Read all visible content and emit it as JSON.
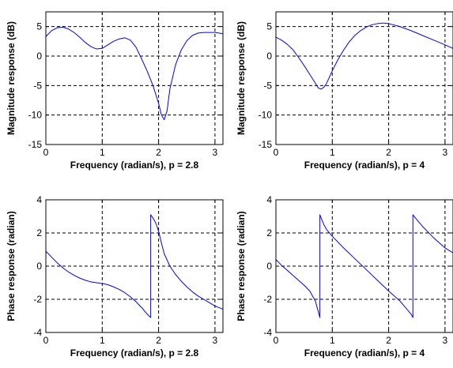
{
  "chart_data": [
    {
      "type": "line",
      "xlabel": "Frequency (radian/s), p = 2.8",
      "ylabel": "Magnitude response (dB)",
      "xlim": [
        0,
        3.1416
      ],
      "ylim": [
        -15,
        7.5
      ],
      "xticks": [
        0,
        1,
        2,
        3
      ],
      "yticks": [
        -15,
        -10,
        -5,
        0,
        5
      ],
      "grid": true,
      "series": [
        {
          "color": "#0000ff",
          "x": [
            0,
            0.1,
            0.2,
            0.3,
            0.4,
            0.5,
            0.6,
            0.7,
            0.8,
            0.9,
            1.0,
            1.1,
            1.2,
            1.3,
            1.4,
            1.5,
            1.6,
            1.7,
            1.8,
            1.9,
            2.0,
            2.05,
            2.1,
            2.15,
            2.2,
            2.3,
            2.4,
            2.5,
            2.6,
            2.7,
            2.8,
            2.9,
            3.0,
            3.1416
          ],
          "y": [
            3.3,
            4.3,
            4.8,
            4.9,
            4.6,
            4.0,
            3.2,
            2.3,
            1.6,
            1.2,
            1.3,
            1.9,
            2.5,
            2.9,
            3.1,
            2.7,
            1.5,
            -0.5,
            -2.6,
            -5.0,
            -8.0,
            -10.0,
            -10.8,
            -9.3,
            -5.6,
            -1.5,
            1.0,
            2.6,
            3.5,
            3.9,
            4.0,
            4.0,
            4.0,
            3.8
          ]
        }
      ]
    },
    {
      "type": "line",
      "xlabel": "Frequency (radian/s), p = 4",
      "ylabel": "Magnitude response (dB)",
      "xlim": [
        0,
        3.1416
      ],
      "ylim": [
        -15,
        7.5
      ],
      "xticks": [
        0,
        1,
        2,
        3
      ],
      "yticks": [
        -15,
        -10,
        -5,
        0,
        5
      ],
      "grid": true,
      "series": [
        {
          "color": "#0000ff",
          "x": [
            0,
            0.1,
            0.2,
            0.3,
            0.4,
            0.5,
            0.6,
            0.7,
            0.75,
            0.8,
            0.85,
            0.9,
            1.0,
            1.1,
            1.2,
            1.3,
            1.4,
            1.5,
            1.6,
            1.7,
            1.8,
            1.9,
            2.0,
            2.2,
            2.4,
            2.6,
            2.8,
            3.0,
            3.1416
          ],
          "y": [
            3.2,
            2.7,
            2.0,
            1.1,
            -0.2,
            -1.6,
            -3.1,
            -4.6,
            -5.4,
            -5.6,
            -5.3,
            -4.6,
            -2.5,
            -0.6,
            1.0,
            2.4,
            3.5,
            4.3,
            4.9,
            5.3,
            5.5,
            5.6,
            5.5,
            5.0,
            4.3,
            3.5,
            2.7,
            1.9,
            1.3
          ]
        }
      ]
    },
    {
      "type": "line",
      "xlabel": "Frequency (radian/s), p = 2.8",
      "ylabel": "Phase response (radian)",
      "xlim": [
        0,
        3.1416
      ],
      "ylim": [
        -4,
        4
      ],
      "xticks": [
        0,
        1,
        2,
        3
      ],
      "yticks": [
        -4,
        -2,
        0,
        2,
        4
      ],
      "grid": true,
      "series": [
        {
          "color": "#0000ff",
          "x": [
            0,
            0.1,
            0.2,
            0.3,
            0.4,
            0.5,
            0.6,
            0.7,
            0.8,
            0.9,
            1.0,
            1.1,
            1.2,
            1.3,
            1.4,
            1.5,
            1.6,
            1.7,
            1.8,
            1.86,
            1.86,
            1.9,
            1.95,
            2.0,
            2.05,
            2.1,
            2.2,
            2.3,
            2.4,
            2.5,
            2.6,
            2.7,
            2.8,
            2.9,
            3.0,
            3.1416
          ],
          "y": [
            0.9,
            0.55,
            0.2,
            -0.1,
            -0.35,
            -0.55,
            -0.72,
            -0.85,
            -0.95,
            -1.0,
            -1.05,
            -1.12,
            -1.25,
            -1.4,
            -1.6,
            -1.85,
            -2.15,
            -2.5,
            -2.9,
            -3.1,
            3.1,
            2.9,
            2.6,
            2.1,
            1.4,
            0.75,
            0.0,
            -0.5,
            -0.9,
            -1.25,
            -1.55,
            -1.8,
            -2.0,
            -2.2,
            -2.4,
            -2.6
          ]
        }
      ]
    },
    {
      "type": "line",
      "xlabel": "Frequency (radian/s), p = 4",
      "ylabel": "Phase response (radian)",
      "xlim": [
        0,
        3.1416
      ],
      "ylim": [
        -4,
        4
      ],
      "xticks": [
        0,
        1,
        2,
        3
      ],
      "yticks": [
        -4,
        -2,
        0,
        2,
        4
      ],
      "grid": true,
      "series": [
        {
          "color": "#0000ff",
          "x": [
            0,
            0.1,
            0.2,
            0.3,
            0.4,
            0.5,
            0.6,
            0.7,
            0.78,
            0.78,
            0.85,
            0.9,
            1.0,
            1.2,
            1.4,
            1.6,
            1.8,
            2.0,
            2.2,
            2.4,
            2.43,
            2.43,
            2.5,
            2.6,
            2.7,
            2.8,
            2.9,
            3.0,
            3.1416
          ],
          "y": [
            0.4,
            0.05,
            -0.25,
            -0.55,
            -0.85,
            -1.15,
            -1.5,
            -2.1,
            -3.1,
            3.1,
            2.5,
            2.2,
            1.8,
            1.1,
            0.45,
            -0.2,
            -0.85,
            -1.5,
            -2.1,
            -2.9,
            -3.1,
            3.1,
            2.8,
            2.4,
            2.05,
            1.7,
            1.4,
            1.1,
            0.8
          ]
        }
      ]
    }
  ]
}
